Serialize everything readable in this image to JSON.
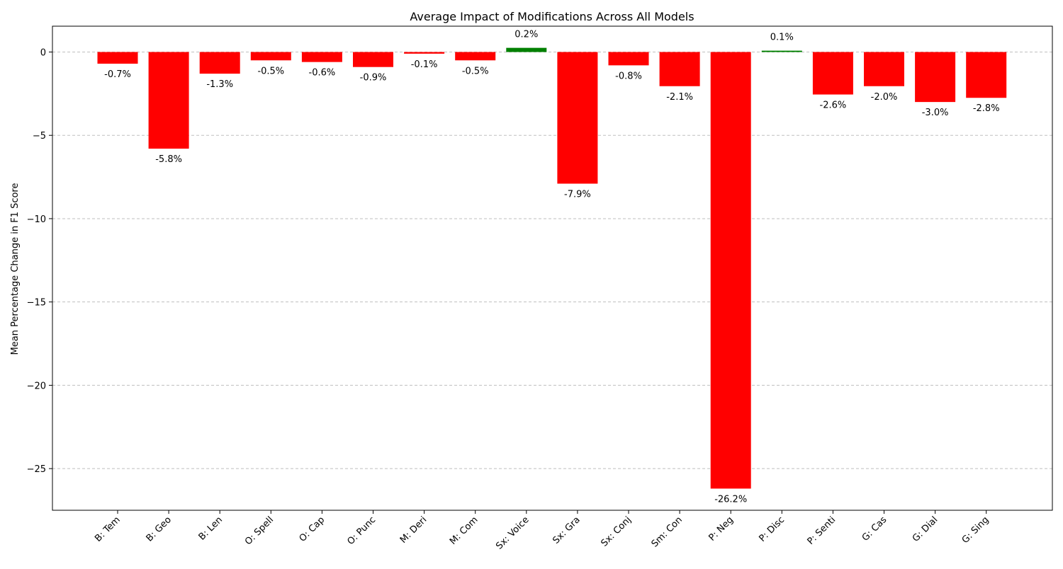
{
  "chart_data": {
    "type": "bar",
    "title": "Average Impact of Modifications Across All Models",
    "xlabel": "",
    "ylabel": "Mean Percentage Change in F1 Score",
    "categories": [
      "B: Tem",
      "B: Geo",
      "B: Len",
      "O: Spell",
      "O: Cap",
      "O: Punc",
      "M: Deri",
      "M: Com",
      "Sx: Voice",
      "Sx: Gra",
      "Sx: Conj",
      "Sm: Con",
      "P: Neg",
      "P: Disc",
      "P: Senti",
      "G: Cas",
      "G: Dial",
      "G: Sing"
    ],
    "values": [
      -0.7,
      -5.8,
      -1.3,
      -0.5,
      -0.6,
      -0.9,
      -0.1,
      -0.5,
      0.25,
      -7.9,
      -0.8,
      -2.05,
      -26.2,
      0.08,
      -2.55,
      -2.05,
      -3.0,
      -2.75
    ],
    "data_labels": [
      "-0.7%",
      "-5.8%",
      "-1.3%",
      "-0.5%",
      "-0.6%",
      "-0.9%",
      "-0.1%",
      "-0.5%",
      "0.2%",
      "-7.9%",
      "-0.8%",
      "-2.1%",
      "-26.2%",
      "0.1%",
      "-2.6%",
      "-2.0%",
      "-3.0%",
      "-2.8%"
    ],
    "ylim": [
      -27.5,
      1.55
    ],
    "yticks": [
      0,
      -5,
      -10,
      -15,
      -20,
      -25
    ],
    "ytick_labels": [
      "0",
      "−5",
      "−10",
      "−15",
      "−20",
      "−25"
    ],
    "grid": "horizontal dashed",
    "colors": {
      "positive": "#008000",
      "negative": "#ff0000",
      "grid": "#bfbfbf"
    }
  }
}
